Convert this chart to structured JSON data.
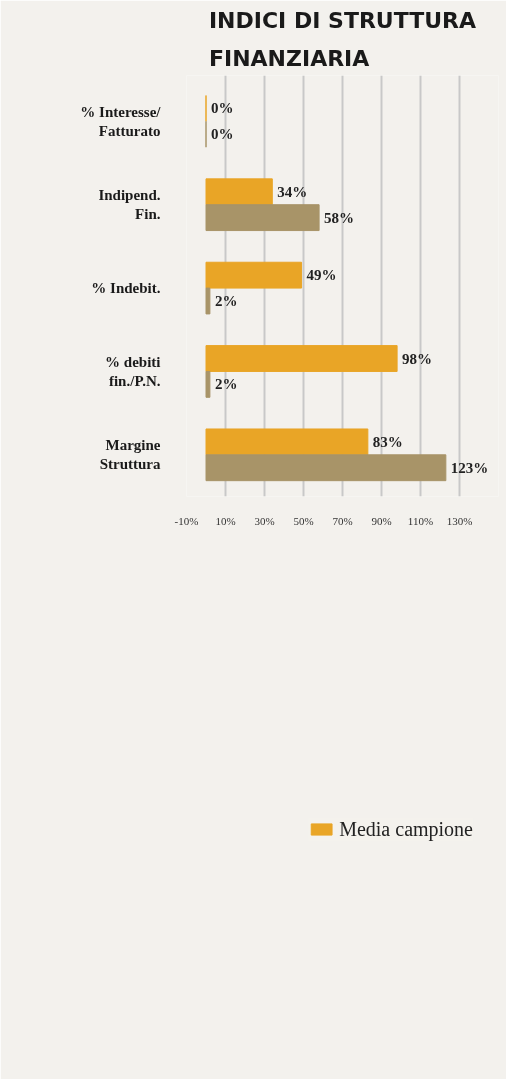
{
  "chart_data": {
    "type": "bar",
    "orientation": "horizontal",
    "title": "INDICI DI STRUTTURA\nFINANZIARIA",
    "categories": [
      "% Interesse/\nFatturato",
      "Indipend.\nFin.",
      "% Indebit.",
      "% debiti\nfin./P.N.",
      "Margine\nStruttura"
    ],
    "series": [
      {
        "name": "Media campione",
        "color": "#e9a526",
        "values": [
          0,
          34,
          49,
          98,
          83
        ],
        "value_labels": [
          "0%",
          "34%",
          "49%",
          "98%",
          "83%"
        ]
      },
      {
        "color": "#a89468",
        "values": [
          0,
          58,
          2,
          2,
          123
        ],
        "value_labels": [
          "0%",
          "58%",
          "2%",
          "2%",
          "123%"
        ]
      }
    ],
    "xlim": [
      -10,
      150
    ],
    "xticks": [
      {
        "value": -10,
        "label": "-10%"
      },
      {
        "value": 10,
        "label": "10%"
      },
      {
        "value": 30,
        "label": "30%"
      },
      {
        "value": 50,
        "label": "50%"
      },
      {
        "value": 70,
        "label": "70%"
      },
      {
        "value": 90,
        "label": "90%"
      },
      {
        "value": 110,
        "label": "110%"
      },
      {
        "value": 130,
        "label": "130%"
      }
    ],
    "grid": "x",
    "legend": "bottom"
  }
}
